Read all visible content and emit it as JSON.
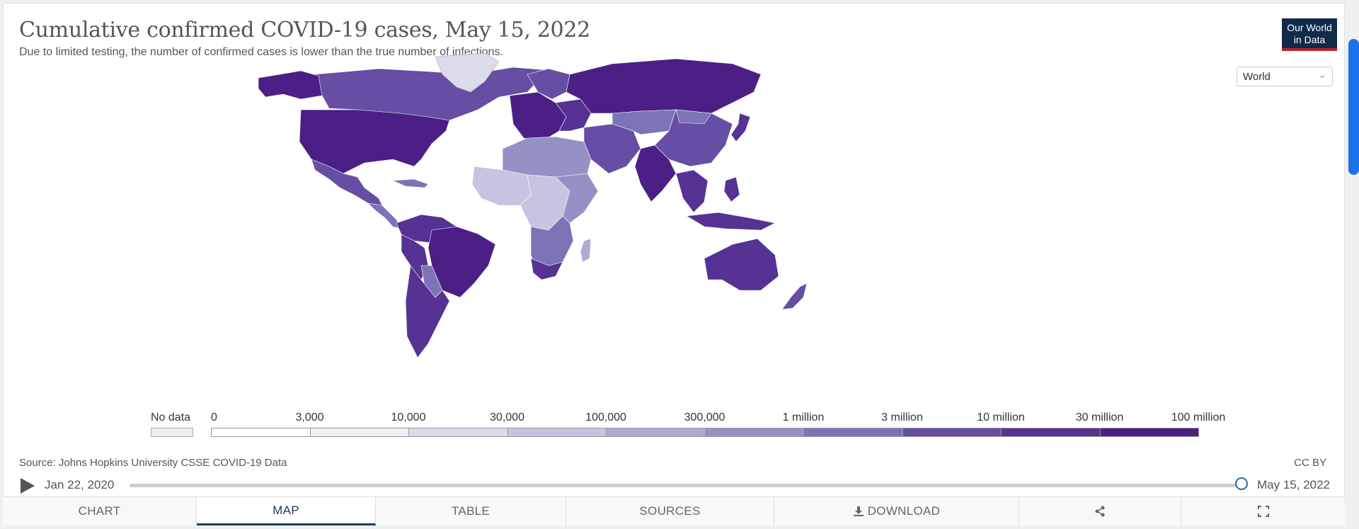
{
  "header": {
    "title": "Cumulative confirmed COVID-19 cases, May 15, 2022",
    "subtitle": "Due to limited testing, the number of confirmed cases is lower than the true number of infections.",
    "logo_line1": "Our World",
    "logo_line2": "in Data"
  },
  "region_select": {
    "value": "World"
  },
  "legend": {
    "no_data_label": "No data",
    "ticks": [
      "0",
      "3,000",
      "10,000",
      "30,000",
      "100,000",
      "300,000",
      "1 million",
      "3 million",
      "10 million",
      "30 million",
      "100 million"
    ],
    "colors": [
      "#ffffff",
      "#eeeef5",
      "#dcdbeb",
      "#c6c4e0",
      "#aeabd3",
      "#9591c6",
      "#7c74b7",
      "#654ea3",
      "#553293",
      "#4b1f86"
    ],
    "no_data_color": "#eeeeee"
  },
  "source": {
    "text": "Source: Johns Hopkins University CSSE COVID-19 Data"
  },
  "license": {
    "text": "CC BY"
  },
  "timeline": {
    "start": "Jan 22, 2020",
    "end": "May 15, 2022",
    "position": 1.0
  },
  "tabs": [
    {
      "label": "CHART"
    },
    {
      "label": "MAP"
    },
    {
      "label": "TABLE"
    },
    {
      "label": "SOURCES"
    },
    {
      "label": "DOWNLOAD"
    },
    {
      "label": ""
    },
    {
      "label": ""
    }
  ],
  "icons": {
    "share": "share-icon",
    "fullscreen": "fullscreen-icon",
    "download": "download-icon",
    "play": "play-icon"
  }
}
